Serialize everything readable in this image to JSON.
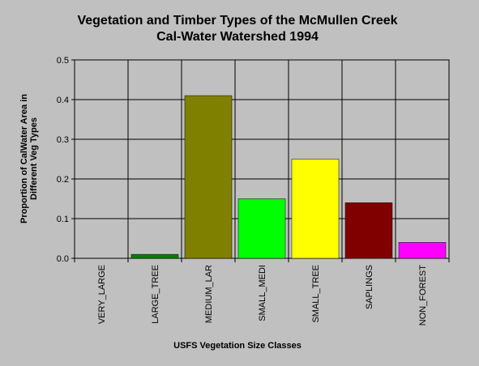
{
  "chart_data": {
    "type": "bar",
    "title": [
      "Vegetation and Timber Types of the  McMullen Creek",
      "Cal-Water Watershed 1994"
    ],
    "xlabel": "USFS Vegetation Size Classes",
    "ylabel": [
      "Proportion of CalWater Area in",
      "Different Veg Types"
    ],
    "ylim": [
      0,
      0.5
    ],
    "yticks": [
      "0.0",
      "0.1",
      "0.2",
      "0.3",
      "0.4",
      "0.5"
    ],
    "grid": true,
    "categories": [
      "VERY_LARGE",
      "LARGE_TREE",
      "MEDIUM_LAR",
      "SMALL_MEDI",
      "SMALL_TREE",
      "SAPLINGS",
      "NON_FOREST"
    ],
    "values": [
      0.0,
      0.01,
      0.41,
      0.15,
      0.25,
      0.14,
      0.04
    ],
    "colors": [
      "#000000",
      "#008000",
      "#808000",
      "#00ff00",
      "#ffff00",
      "#800000",
      "#ff00ff"
    ]
  }
}
